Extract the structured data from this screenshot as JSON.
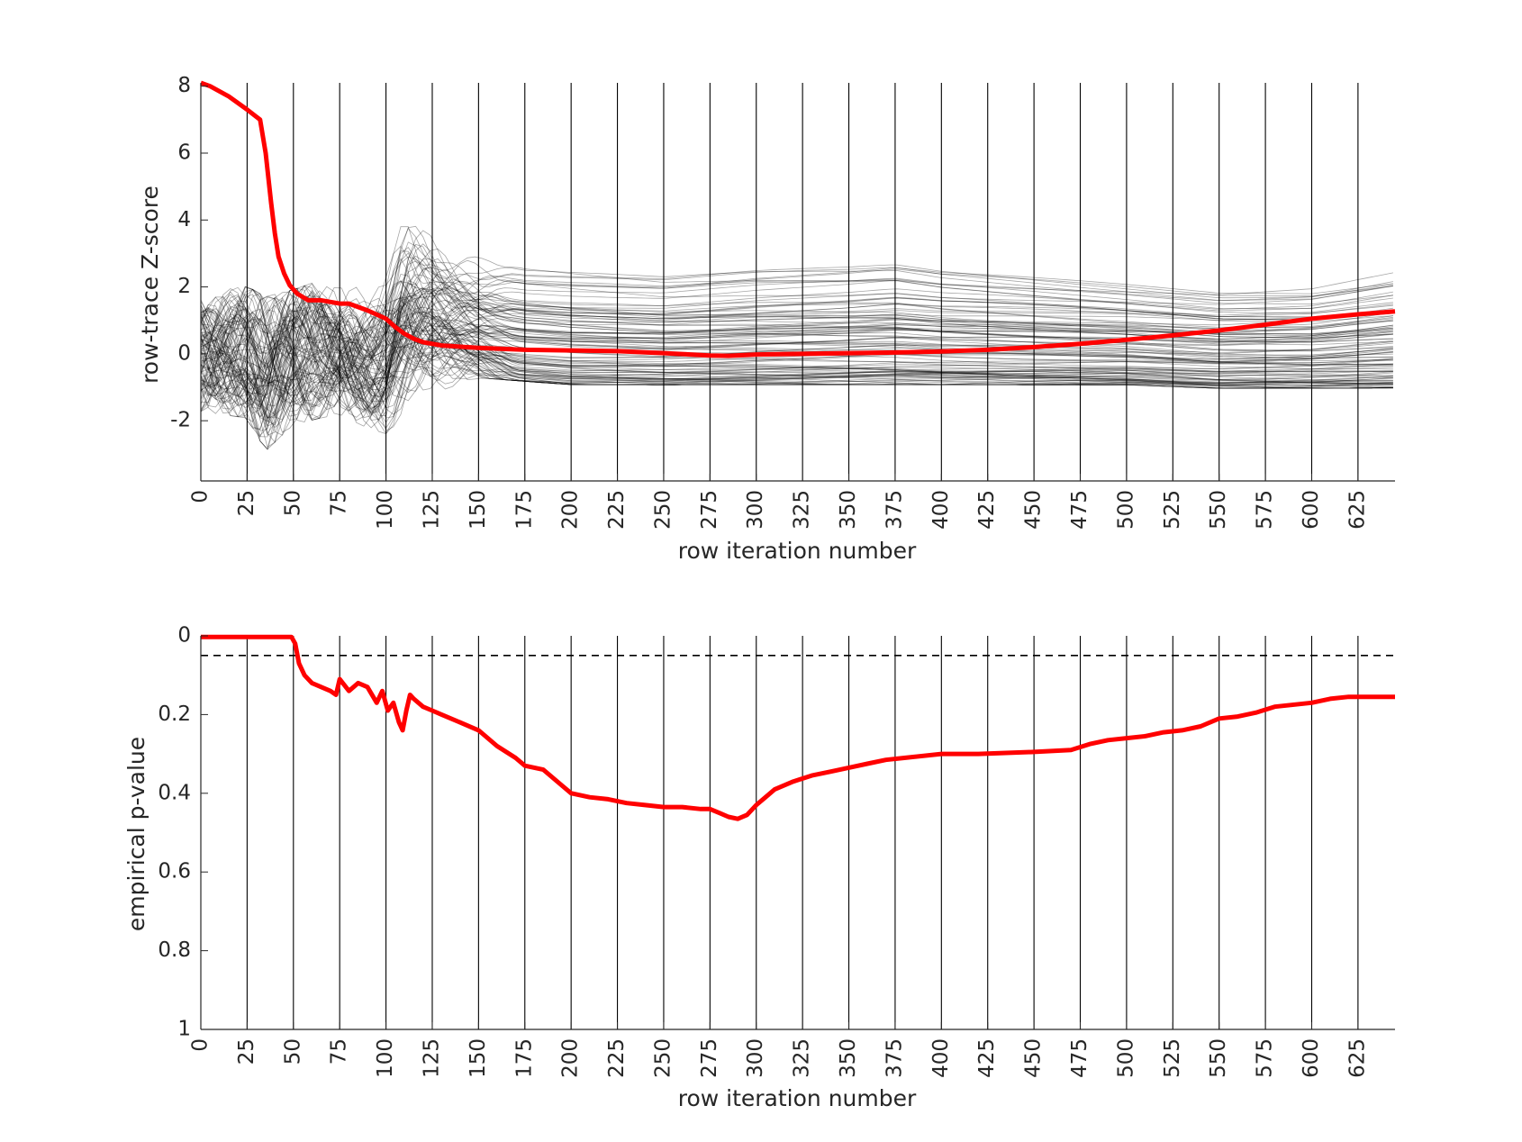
{
  "chart_data": [
    {
      "type": "line",
      "xlabel": "row iteration number",
      "ylabel": "row-trace Z-score",
      "xlim": [
        0,
        645
      ],
      "ylim": [
        -3.8,
        8.1
      ],
      "xticks": [
        0,
        25,
        50,
        75,
        100,
        125,
        150,
        175,
        200,
        225,
        250,
        275,
        300,
        325,
        350,
        375,
        400,
        425,
        450,
        475,
        500,
        525,
        550,
        575,
        600,
        625
      ],
      "yticks": [
        -2,
        0,
        2,
        4,
        6,
        8
      ],
      "xgrid": true,
      "ygrid": false,
      "highlight_color": "#ff0000",
      "background_color": "#000000",
      "background_series_count": 110,
      "background_envelope": {
        "x": [
          0,
          25,
          35,
          50,
          65,
          75,
          90,
          100,
          110,
          125,
          150,
          175,
          200,
          250,
          300,
          350,
          375,
          400,
          450,
          500,
          550,
          600,
          645
        ],
        "upper": [
          1.9,
          2.1,
          1.8,
          2.0,
          2.3,
          2.2,
          2.0,
          3.0,
          5.0,
          4.6,
          3.4,
          3.1,
          3.0,
          2.8,
          3.0,
          3.1,
          3.2,
          3.0,
          2.8,
          2.6,
          2.4,
          2.5,
          3.0
        ],
        "lower": [
          -1.8,
          -2.0,
          -3.0,
          -2.2,
          -2.0,
          -1.9,
          -2.3,
          -2.5,
          -2.0,
          -1.3,
          -0.8,
          -0.9,
          -1.0,
          -1.0,
          -1.0,
          -1.0,
          -1.0,
          -1.0,
          -1.0,
          -1.0,
          -1.1,
          -1.1,
          -1.1
        ]
      },
      "highlight_series": {
        "x": [
          0,
          5,
          15,
          25,
          32,
          35,
          38,
          40,
          42,
          45,
          48,
          52,
          58,
          65,
          75,
          80,
          85,
          90,
          100,
          105,
          110,
          115,
          120,
          130,
          150,
          175,
          200,
          225,
          250,
          275,
          285,
          300,
          325,
          350,
          375,
          400,
          425,
          450,
          475,
          500,
          525,
          550,
          575,
          600,
          625,
          645
        ],
        "y": [
          8.1,
          8.0,
          7.7,
          7.3,
          7.0,
          6.0,
          4.5,
          3.6,
          2.9,
          2.4,
          2.05,
          1.8,
          1.6,
          1.6,
          1.5,
          1.5,
          1.4,
          1.3,
          1.05,
          0.8,
          0.6,
          0.45,
          0.35,
          0.25,
          0.18,
          0.12,
          0.1,
          0.08,
          0.02,
          -0.05,
          -0.06,
          -0.02,
          0.0,
          0.02,
          0.04,
          0.07,
          0.12,
          0.2,
          0.3,
          0.42,
          0.55,
          0.7,
          0.87,
          1.05,
          1.18,
          1.27
        ]
      }
    },
    {
      "type": "line",
      "xlabel": "row iteration number",
      "ylabel": "empirical p-value",
      "xlim": [
        0,
        645
      ],
      "ylim": [
        0,
        1
      ],
      "y_reversed": true,
      "xticks": [
        0,
        25,
        50,
        75,
        100,
        125,
        150,
        175,
        200,
        225,
        250,
        275,
        300,
        325,
        350,
        375,
        400,
        425,
        450,
        475,
        500,
        525,
        550,
        575,
        600,
        625
      ],
      "yticks": [
        0,
        0.2,
        0.4,
        0.6,
        0.8,
        1
      ],
      "ytick_labels": [
        "0",
        "0.2",
        "0.4",
        "0.6",
        "0.8",
        "1"
      ],
      "xgrid": true,
      "ygrid": false,
      "threshold": 0.05,
      "series_color": "#ff0000",
      "series": {
        "x": [
          0,
          49,
          51,
          53,
          56,
          60,
          65,
          70,
          73,
          75,
          80,
          85,
          90,
          95,
          98,
          101,
          104,
          107,
          109,
          111,
          113,
          115,
          120,
          125,
          130,
          140,
          150,
          160,
          170,
          175,
          185,
          195,
          200,
          210,
          220,
          230,
          240,
          250,
          260,
          270,
          275,
          280,
          285,
          290,
          295,
          300,
          305,
          310,
          320,
          330,
          340,
          350,
          360,
          370,
          380,
          400,
          420,
          450,
          470,
          480,
          490,
          500,
          510,
          520,
          530,
          540,
          550,
          560,
          570,
          580,
          600,
          610,
          620,
          645
        ],
        "y": [
          0.003,
          0.003,
          0.02,
          0.07,
          0.1,
          0.12,
          0.13,
          0.14,
          0.15,
          0.11,
          0.14,
          0.12,
          0.13,
          0.17,
          0.14,
          0.19,
          0.17,
          0.22,
          0.24,
          0.19,
          0.15,
          0.16,
          0.18,
          0.19,
          0.2,
          0.22,
          0.24,
          0.28,
          0.31,
          0.33,
          0.34,
          0.38,
          0.4,
          0.41,
          0.415,
          0.425,
          0.43,
          0.435,
          0.435,
          0.44,
          0.44,
          0.45,
          0.46,
          0.465,
          0.455,
          0.43,
          0.41,
          0.39,
          0.37,
          0.355,
          0.345,
          0.335,
          0.325,
          0.315,
          0.31,
          0.3,
          0.3,
          0.295,
          0.29,
          0.275,
          0.265,
          0.26,
          0.255,
          0.245,
          0.24,
          0.23,
          0.21,
          0.205,
          0.195,
          0.18,
          0.17,
          0.16,
          0.155,
          0.155
        ]
      }
    }
  ]
}
